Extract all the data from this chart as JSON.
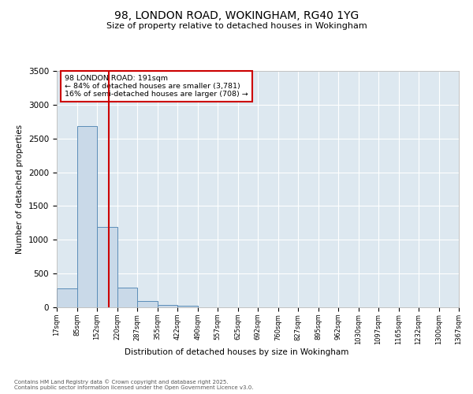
{
  "title_line1": "98, LONDON ROAD, WOKINGHAM, RG40 1YG",
  "title_line2": "Size of property relative to detached houses in Wokingham",
  "xlabel": "Distribution of detached houses by size in Wokingham",
  "ylabel": "Number of detached properties",
  "annotation_line1": "98 LONDON ROAD: 191sqm",
  "annotation_line2": "← 84% of detached houses are smaller (3,781)",
  "annotation_line3": "16% of semi-detached houses are larger (708) →",
  "footer_line1": "Contains HM Land Registry data © Crown copyright and database right 2025.",
  "footer_line2": "Contains public sector information licensed under the Open Government Licence v3.0.",
  "property_size": 191,
  "bar_color": "#c9d9e8",
  "bar_edge_color": "#5b8db8",
  "vline_color": "#cc0000",
  "background_color": "#dde8f0",
  "grid_color": "#ffffff",
  "annotation_box_color": "#cc0000",
  "ylim": [
    0,
    3500
  ],
  "bins": [
    17,
    85,
    152,
    220,
    287,
    355,
    422,
    490,
    557,
    625,
    692,
    760,
    827,
    895,
    962,
    1030,
    1097,
    1165,
    1232,
    1300,
    1367
  ],
  "counts": [
    280,
    2680,
    1185,
    295,
    95,
    40,
    20,
    0,
    0,
    0,
    0,
    0,
    0,
    0,
    0,
    0,
    0,
    0,
    0,
    0
  ]
}
